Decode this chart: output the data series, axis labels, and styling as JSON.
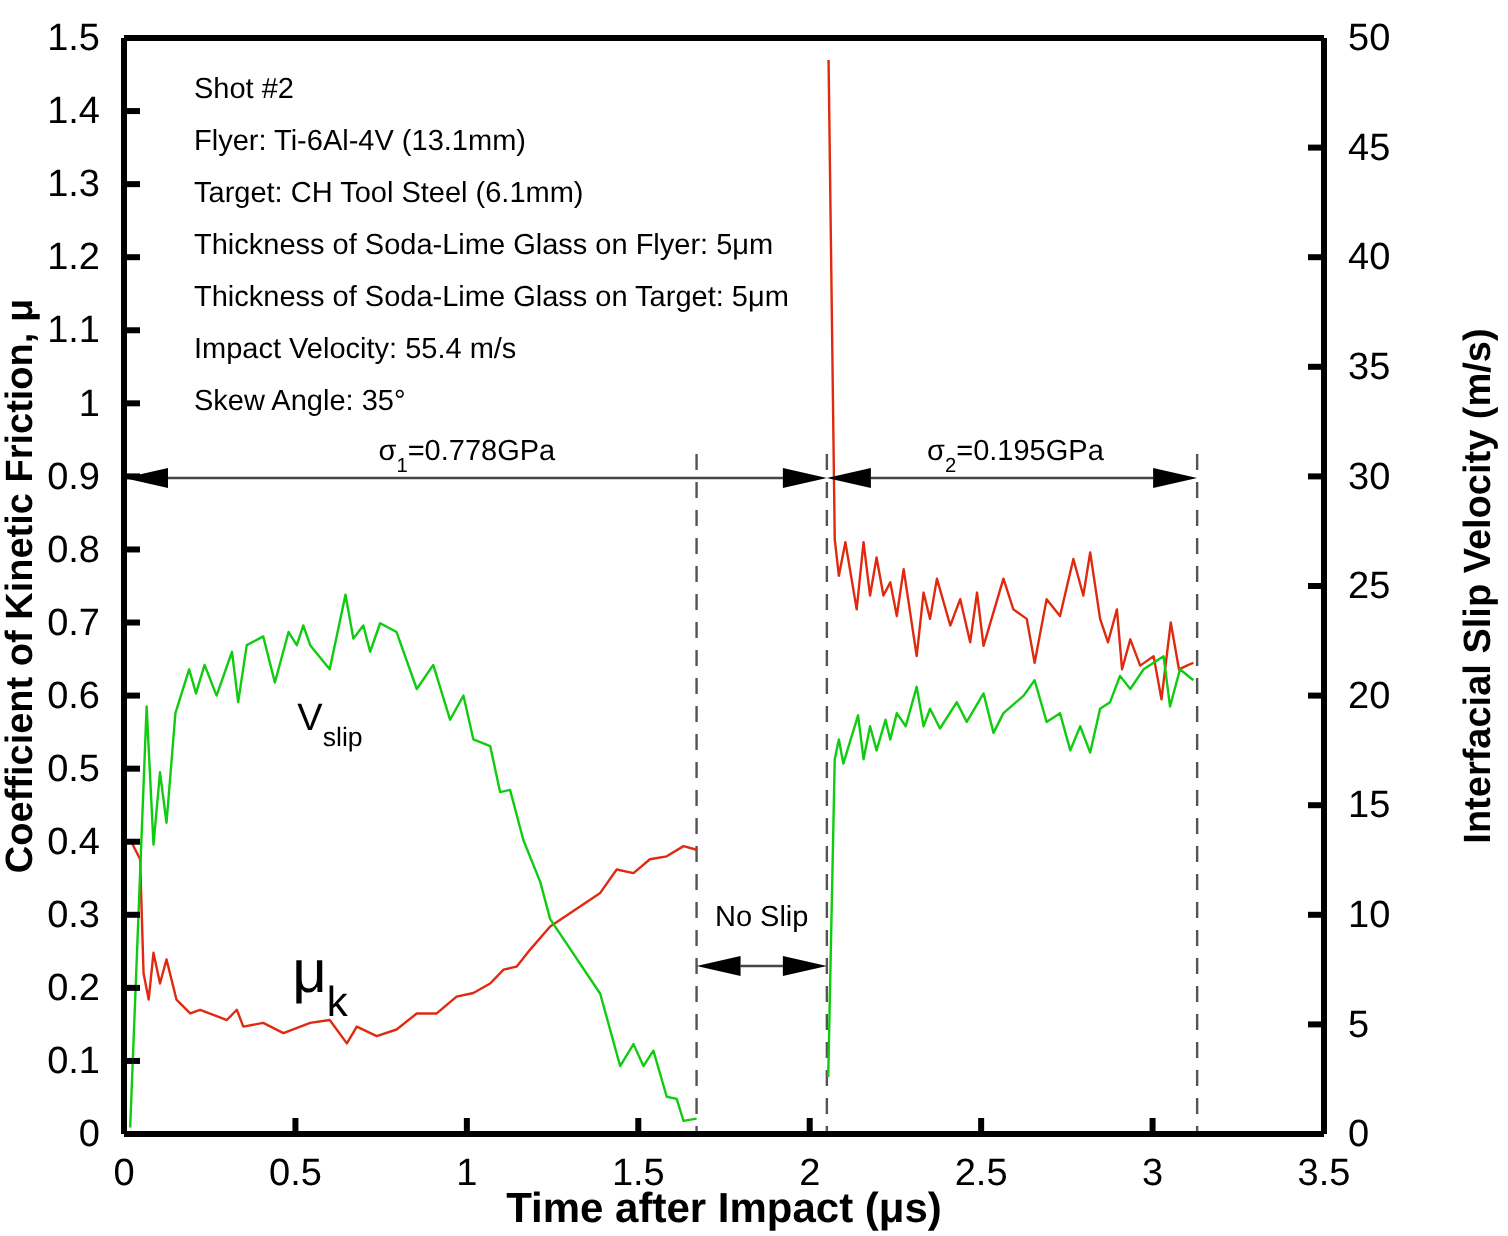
{
  "chart_data": {
    "type": "line",
    "xlabel": "Time after Impact (μs)",
    "ylabel": "Coefficient of Kinetic Friction, μ",
    "y2label": "Interfacial Slip Velocity (m/s)",
    "xlim": [
      0,
      3.5
    ],
    "xticks": [
      0,
      0.5,
      1,
      1.5,
      2,
      2.5,
      3,
      3.5
    ],
    "ylim": [
      0,
      1.5
    ],
    "yticks": [
      0,
      0.1,
      0.2,
      0.3,
      0.4,
      0.5,
      0.6,
      0.7,
      0.8,
      0.9,
      1,
      1.1,
      1.2,
      1.3,
      1.4,
      1.5
    ],
    "y2lim": [
      0,
      50
    ],
    "y2ticks": [
      0,
      5,
      10,
      15,
      20,
      25,
      30,
      35,
      40,
      45,
      50
    ],
    "line_style": "solid",
    "marker": "none",
    "series": [
      {
        "color": "#e02a10",
        "x": [
          0.018,
          0.047,
          0.057,
          0.072,
          0.086,
          0.105,
          0.124,
          0.153,
          0.193,
          0.222,
          0.3,
          0.329,
          0.348,
          0.406,
          0.465,
          0.543,
          0.6,
          0.65,
          0.679,
          0.737,
          0.795,
          0.854,
          0.912,
          0.97,
          1.019,
          1.068,
          1.107,
          1.145,
          1.184,
          1.243,
          1.389,
          1.437,
          1.486,
          1.534,
          1.583,
          1.632,
          1.67,
          null,
          2.055,
          2.073,
          2.085,
          2.104,
          2.137,
          2.157,
          2.176,
          2.195,
          2.215,
          2.235,
          2.254,
          2.274,
          2.312,
          2.332,
          2.351,
          2.371,
          2.41,
          2.439,
          2.468,
          2.488,
          2.507,
          2.565,
          2.594,
          2.633,
          2.656,
          2.691,
          2.73,
          2.769,
          2.798,
          2.818,
          2.847,
          2.87,
          2.896,
          2.911,
          2.935,
          2.964,
          3.003,
          3.026,
          3.053,
          3.077,
          3.1,
          3.119
        ],
        "values": [
          0.403,
          0.376,
          0.22,
          0.184,
          0.248,
          0.206,
          0.239,
          0.184,
          0.165,
          0.17,
          0.156,
          0.17,
          0.147,
          0.152,
          0.138,
          0.152,
          0.156,
          0.124,
          0.147,
          0.134,
          0.143,
          0.165,
          0.165,
          0.188,
          0.193,
          0.206,
          0.225,
          0.229,
          0.252,
          0.284,
          0.33,
          0.362,
          0.357,
          0.376,
          0.38,
          0.394,
          0.389,
          null,
          1.47,
          0.814,
          0.764,
          0.81,
          0.718,
          0.81,
          0.737,
          0.789,
          0.737,
          0.755,
          0.709,
          0.773,
          0.654,
          0.741,
          0.705,
          0.76,
          0.696,
          0.732,
          0.673,
          0.741,
          0.668,
          0.76,
          0.718,
          0.705,
          0.645,
          0.732,
          0.709,
          0.787,
          0.737,
          0.796,
          0.705,
          0.673,
          0.718,
          0.636,
          0.677,
          0.641,
          0.654,
          0.595,
          0.7,
          0.636,
          0.641,
          0.645
        ]
      },
      {
        "color": "#10cc10",
        "axis": "y2",
        "x": [
          0.018,
          0.066,
          0.086,
          0.105,
          0.124,
          0.15,
          0.19,
          0.21,
          0.235,
          0.27,
          0.315,
          0.333,
          0.358,
          0.406,
          0.44,
          0.48,
          0.504,
          0.523,
          0.543,
          0.6,
          0.646,
          0.669,
          0.698,
          0.718,
          0.747,
          0.795,
          0.854,
          0.902,
          0.951,
          0.99,
          1.019,
          1.068,
          1.097,
          1.126,
          1.165,
          1.214,
          1.243,
          1.389,
          1.447,
          1.486,
          1.515,
          1.544,
          1.583,
          1.612,
          1.632,
          1.67,
          null,
          2.054,
          2.073,
          2.085,
          2.098,
          2.141,
          2.157,
          2.176,
          2.195,
          2.221,
          2.235,
          2.254,
          2.28,
          2.312,
          2.332,
          2.351,
          2.38,
          2.429,
          2.458,
          2.507,
          2.536,
          2.565,
          2.624,
          2.656,
          2.691,
          2.73,
          2.76,
          2.789,
          2.818,
          2.847,
          2.876,
          2.905,
          2.935,
          2.974,
          3.032,
          3.051,
          3.08,
          3.119
        ],
        "values": [
          0.3,
          19.5,
          13.2,
          16.5,
          14.2,
          19.2,
          21.2,
          20.1,
          21.4,
          20.0,
          22.0,
          19.7,
          22.3,
          22.7,
          20.6,
          22.9,
          22.3,
          23.2,
          22.3,
          21.2,
          24.6,
          22.6,
          23.2,
          22.0,
          23.3,
          22.9,
          20.3,
          21.4,
          18.9,
          20.0,
          18.0,
          17.7,
          15.6,
          15.7,
          13.4,
          11.5,
          9.8,
          6.4,
          3.1,
          4.1,
          3.1,
          3.8,
          1.7,
          1.6,
          0.6,
          0.7,
          null,
          2.6,
          17.1,
          18.0,
          16.9,
          19.1,
          17.1,
          18.6,
          17.5,
          18.9,
          18.0,
          19.2,
          18.6,
          20.4,
          18.6,
          19.4,
          18.5,
          19.7,
          18.8,
          20.1,
          18.3,
          19.2,
          20.0,
          20.7,
          18.8,
          19.2,
          17.5,
          18.6,
          17.4,
          19.4,
          19.7,
          20.9,
          20.3,
          21.2,
          21.8,
          19.5,
          21.2,
          20.7
        ]
      }
    ],
    "ref_lines": [
      {
        "axis": "x",
        "value": 1.67,
        "color": "#555555",
        "line_style": "dashed"
      },
      {
        "axis": "x",
        "value": 2.05,
        "color": "#555555",
        "line_style": "dashed"
      },
      {
        "axis": "x",
        "value": 3.13,
        "color": "#555555",
        "line_style": "dashed"
      }
    ],
    "annotations": [
      "Shot #2",
      "Flyer: Ti-6Al-4V (13.1mm)",
      "Target: CH Tool Steel (6.1mm)",
      "Thickness of Soda-Lime Glass on Flyer: 5μm",
      "Thickness of Soda-Lime Glass on Target: 5μm",
      "Impact Velocity: 55.4 m/s",
      "Skew Angle: 35°",
      "σ$_{1}$=0.778GPa",
      "σ$_{2}$=0.195GPa",
      "No Slip",
      "V$_{slip}$",
      "μ$_{k}$"
    ]
  }
}
